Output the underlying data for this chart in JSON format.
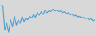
{
  "values": [
    85,
    85,
    15,
    35,
    10,
    45,
    25,
    55,
    30,
    45,
    35,
    55,
    40,
    50,
    45,
    55,
    50,
    60,
    52,
    65,
    58,
    68,
    60,
    72,
    65,
    70,
    68,
    75,
    70,
    72,
    68,
    70,
    65,
    68,
    62,
    65,
    58,
    62,
    55,
    58,
    52,
    55,
    50,
    52,
    48,
    50,
    45,
    48,
    42,
    45
  ],
  "line_color": "#4a9fd4",
  "background_color": "#d8d8d8",
  "linewidth": 0.8
}
